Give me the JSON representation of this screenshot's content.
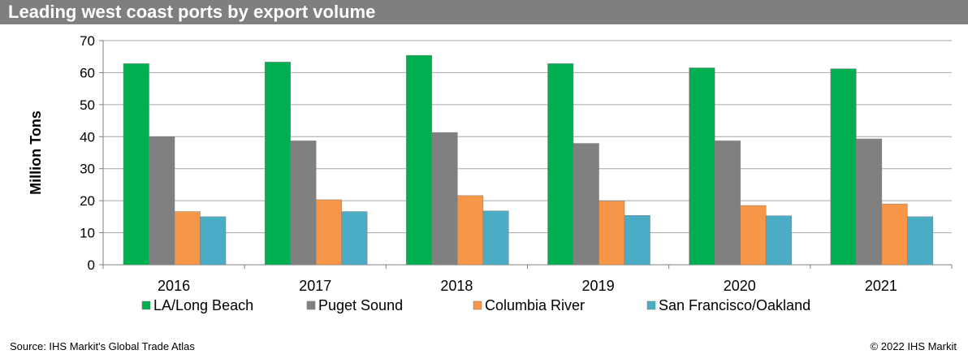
{
  "header": {
    "title": "Leading west coast ports by export volume"
  },
  "footer": {
    "source": "Source: IHS Markit's Global Trade Atlas",
    "copyright": "© 2022 IHS Markit"
  },
  "chart_data": {
    "type": "bar",
    "title": "Leading west coast ports by export volume",
    "xlabel": "",
    "ylabel": "Million Tons",
    "ylim": [
      0,
      70
    ],
    "yticks": [
      0,
      10,
      20,
      30,
      40,
      50,
      60,
      70
    ],
    "grid": true,
    "legend": "bottom",
    "categories": [
      "2016",
      "2017",
      "2018",
      "2019",
      "2020",
      "2021"
    ],
    "series": [
      {
        "name": "LA/Long Beach",
        "color": "#00b050",
        "values": [
          62.8,
          63.3,
          65.4,
          62.8,
          61.5,
          61.2
        ]
      },
      {
        "name": "Puget Sound",
        "color": "#808080",
        "values": [
          40.0,
          38.7,
          41.3,
          37.9,
          38.7,
          39.3
        ]
      },
      {
        "name": "Columbia River",
        "color": "#f79646",
        "values": [
          16.6,
          20.3,
          21.6,
          19.9,
          18.5,
          19.0
        ]
      },
      {
        "name": "San Francisco/Oakland",
        "color": "#4bacc6",
        "values": [
          15.0,
          16.6,
          16.8,
          15.4,
          15.3,
          15.0
        ]
      }
    ]
  }
}
